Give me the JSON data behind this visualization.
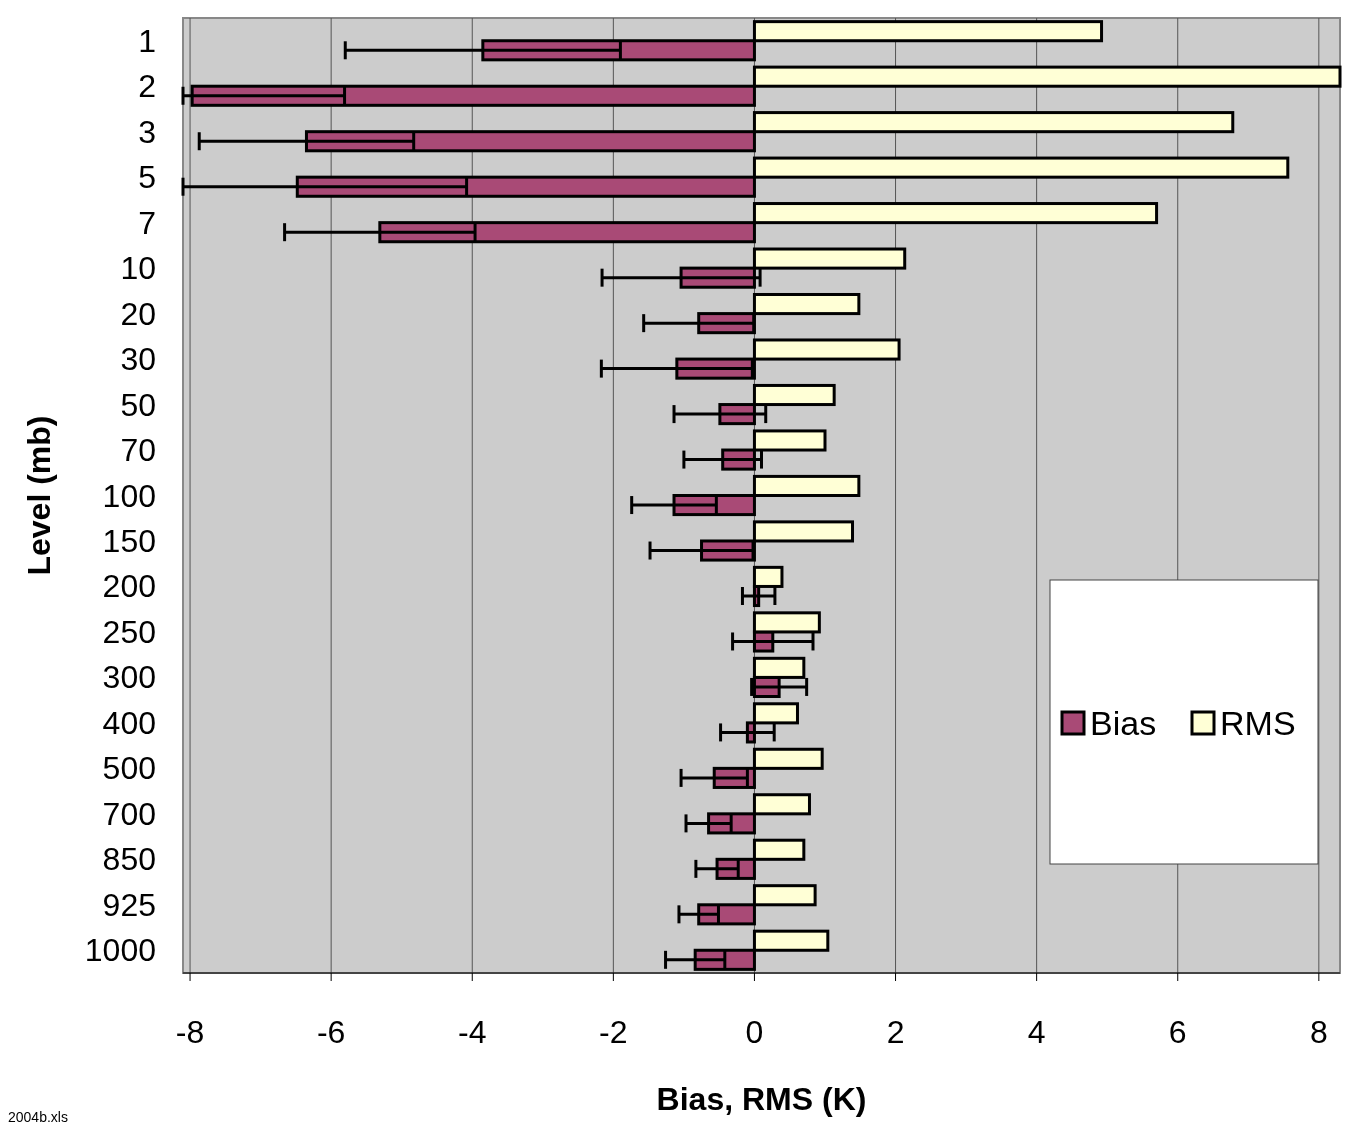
{
  "chart_data": {
    "type": "bar",
    "orientation": "horizontal",
    "xlabel": "Bias, RMS (K)",
    "ylabel": "Level (mb)",
    "categories": [
      "1",
      "2",
      "3",
      "5",
      "7",
      "10",
      "20",
      "30",
      "50",
      "70",
      "100",
      "150",
      "200",
      "250",
      "300",
      "400",
      "500",
      "700",
      "850",
      "925",
      "1000"
    ],
    "series": [
      {
        "name": "Bias",
        "color": "#a94a76",
        "values": [
          -3.85,
          -7.97,
          -6.35,
          -6.48,
          -5.31,
          -1.04,
          -0.79,
          -1.1,
          -0.49,
          -0.45,
          -1.14,
          -0.75,
          0.06,
          0.26,
          0.35,
          -0.1,
          -0.57,
          -0.65,
          -0.53,
          -0.79,
          -0.84
        ],
        "errors": [
          1.95,
          [
            -8.1,
            -5.81
          ],
          1.52,
          [
            -8.1,
            -4.08
          ],
          1.35,
          1.12,
          0.78,
          1.07,
          0.65,
          0.55,
          0.6,
          0.73,
          0.23,
          0.57,
          0.39,
          0.38,
          0.47,
          0.32,
          0.3,
          0.28,
          0.42
        ]
      },
      {
        "name": "RMS",
        "color": "#ffffd6",
        "values": [
          4.92,
          8.3,
          6.78,
          7.56,
          5.7,
          2.13,
          1.48,
          2.05,
          1.13,
          1.0,
          1.48,
          1.39,
          0.39,
          0.92,
          0.7,
          0.61,
          0.96,
          0.78,
          0.7,
          0.86,
          1.04
        ]
      }
    ],
    "xlim": [
      -8.1,
      8.3
    ],
    "xticks": [
      -8,
      -6,
      -4,
      -2,
      0,
      2,
      4,
      6,
      8
    ],
    "grid": "x",
    "legend": "right",
    "annotations": [
      "2004b.xls"
    ]
  }
}
